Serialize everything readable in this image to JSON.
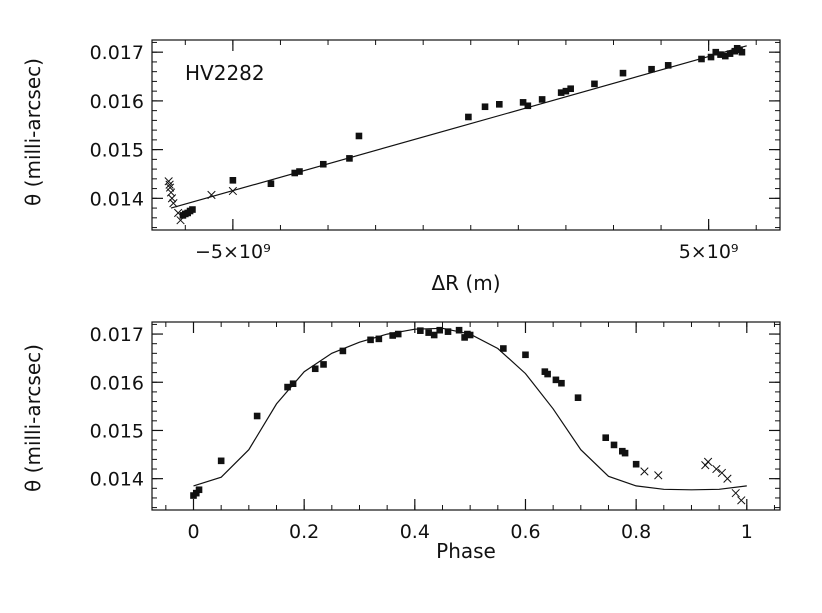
{
  "chart_data": [
    {
      "type": "scatter",
      "annotation": "HV2282",
      "xlabel": "ΔR (m)",
      "ylabel": "θ (milli-arcsec)",
      "xlim": [
        -6700000000.0,
        6500000000.0
      ],
      "ylim": [
        0.01335,
        0.01725
      ],
      "xticks": [
        -5000000000.0,
        5000000000.0
      ],
      "xtick_labels": [
        "−5×10⁹",
        "5×10⁹"
      ],
      "x_minor_step": 1000000000.0,
      "yticks": [
        0.014,
        0.015,
        0.016,
        0.017
      ],
      "ytick_labels": [
        "0.014",
        "0.015",
        "0.016",
        "0.017"
      ],
      "y_minor_step": 0.0002,
      "fit_line": {
        "x": [
          -6300000000.0,
          5800000000.0
        ],
        "y": [
          0.0138,
          0.01713
        ]
      },
      "series": [
        {
          "marker": "square",
          "x": [
            -6050000000.0,
            -6000000000.0,
            -5950000000.0,
            -5900000000.0,
            -5850000000.0,
            -5000000000.0,
            -4200000000.0,
            -3700000000.0,
            -3600000000.0,
            -3100000000.0,
            -2550000000.0,
            -2350000000.0,
            -50000000.0,
            300000000.0,
            600000000.0,
            1100000000.0,
            1200000000.0,
            1500000000.0,
            1900000000.0,
            2000000000.0,
            2100000000.0,
            2600000000.0,
            3200000000.0,
            3800000000.0,
            4150000000.0,
            4850000000.0,
            5050000000.0,
            5150000000.0,
            5250000000.0,
            5350000000.0,
            5450000000.0,
            5550000000.0,
            5600000000.0,
            5650000000.0,
            5700000000.0
          ],
          "y": [
            0.01365,
            0.01368,
            0.0137,
            0.01374,
            0.01377,
            0.01437,
            0.0143,
            0.01452,
            0.01455,
            0.0147,
            0.01482,
            0.01528,
            0.01567,
            0.01588,
            0.01593,
            0.01597,
            0.0159,
            0.01603,
            0.01617,
            0.0162,
            0.01625,
            0.01635,
            0.01657,
            0.01665,
            0.01673,
            0.01686,
            0.0169,
            0.017,
            0.01695,
            0.01692,
            0.01697,
            0.01702,
            0.01708,
            0.01705,
            0.017
          ]
        },
        {
          "marker": "cross",
          "x": [
            -6350000000.0,
            -6330000000.0,
            -6320000000.0,
            -6300000000.0,
            -6280000000.0,
            -6250000000.0,
            -6150000000.0,
            -6100000000.0,
            -5450000000.0,
            -5000000000.0
          ],
          "y": [
            0.01435,
            0.01428,
            0.01422,
            0.01412,
            0.014,
            0.0139,
            0.0137,
            0.01355,
            0.01407,
            0.01415
          ]
        }
      ]
    },
    {
      "type": "scatter",
      "xlabel": "Phase",
      "ylabel": "θ (milli-arcsec)",
      "xlim": [
        -0.075,
        1.06
      ],
      "ylim": [
        0.01335,
        0.01725
      ],
      "xticks": [
        0,
        0.2,
        0.4,
        0.6,
        0.8,
        1
      ],
      "xtick_labels": [
        "0",
        "0.2",
        "0.4",
        "0.6",
        "0.8",
        "1"
      ],
      "x_minor_step": 0.05,
      "yticks": [
        0.014,
        0.015,
        0.016,
        0.017
      ],
      "ytick_labels": [
        "0.014",
        "0.015",
        "0.016",
        "0.017"
      ],
      "y_minor_step": 0.0002,
      "fit_curve": {
        "x": [
          0.0,
          0.05,
          0.1,
          0.15,
          0.2,
          0.25,
          0.3,
          0.35,
          0.4,
          0.45,
          0.5,
          0.55,
          0.6,
          0.65,
          0.7,
          0.75,
          0.8,
          0.85,
          0.9,
          0.95,
          1.0
        ],
        "y": [
          0.01385,
          0.01403,
          0.0146,
          0.01555,
          0.01622,
          0.0166,
          0.01683,
          0.017,
          0.0171,
          0.01712,
          0.017,
          0.0167,
          0.01618,
          0.01545,
          0.0146,
          0.01405,
          0.01385,
          0.01378,
          0.01377,
          0.01378,
          0.01385
        ]
      },
      "series": [
        {
          "marker": "square",
          "x": [
            0.0,
            0.005,
            0.01,
            0.05,
            0.115,
            0.17,
            0.18,
            0.22,
            0.235,
            0.27,
            0.32,
            0.335,
            0.36,
            0.37,
            0.41,
            0.425,
            0.435,
            0.445,
            0.46,
            0.48,
            0.49,
            0.495,
            0.5,
            0.56,
            0.6,
            0.635,
            0.64,
            0.655,
            0.665,
            0.695,
            0.745,
            0.76,
            0.775,
            0.78,
            0.8
          ],
          "y": [
            0.01365,
            0.0137,
            0.01377,
            0.01437,
            0.0153,
            0.0159,
            0.01597,
            0.01628,
            0.01637,
            0.01665,
            0.01688,
            0.0169,
            0.01697,
            0.017,
            0.01707,
            0.01703,
            0.01698,
            0.01708,
            0.01705,
            0.01708,
            0.01693,
            0.017,
            0.01698,
            0.0167,
            0.01657,
            0.01622,
            0.01617,
            0.01605,
            0.01598,
            0.01568,
            0.01485,
            0.0147,
            0.01457,
            0.01453,
            0.0143
          ]
        },
        {
          "marker": "cross",
          "x": [
            0.815,
            0.84,
            0.925,
            0.93,
            0.945,
            0.955,
            0.965,
            0.98,
            0.99
          ],
          "y": [
            0.01415,
            0.01407,
            0.01428,
            0.01435,
            0.0142,
            0.01412,
            0.014,
            0.0137,
            0.01355
          ]
        }
      ]
    }
  ]
}
